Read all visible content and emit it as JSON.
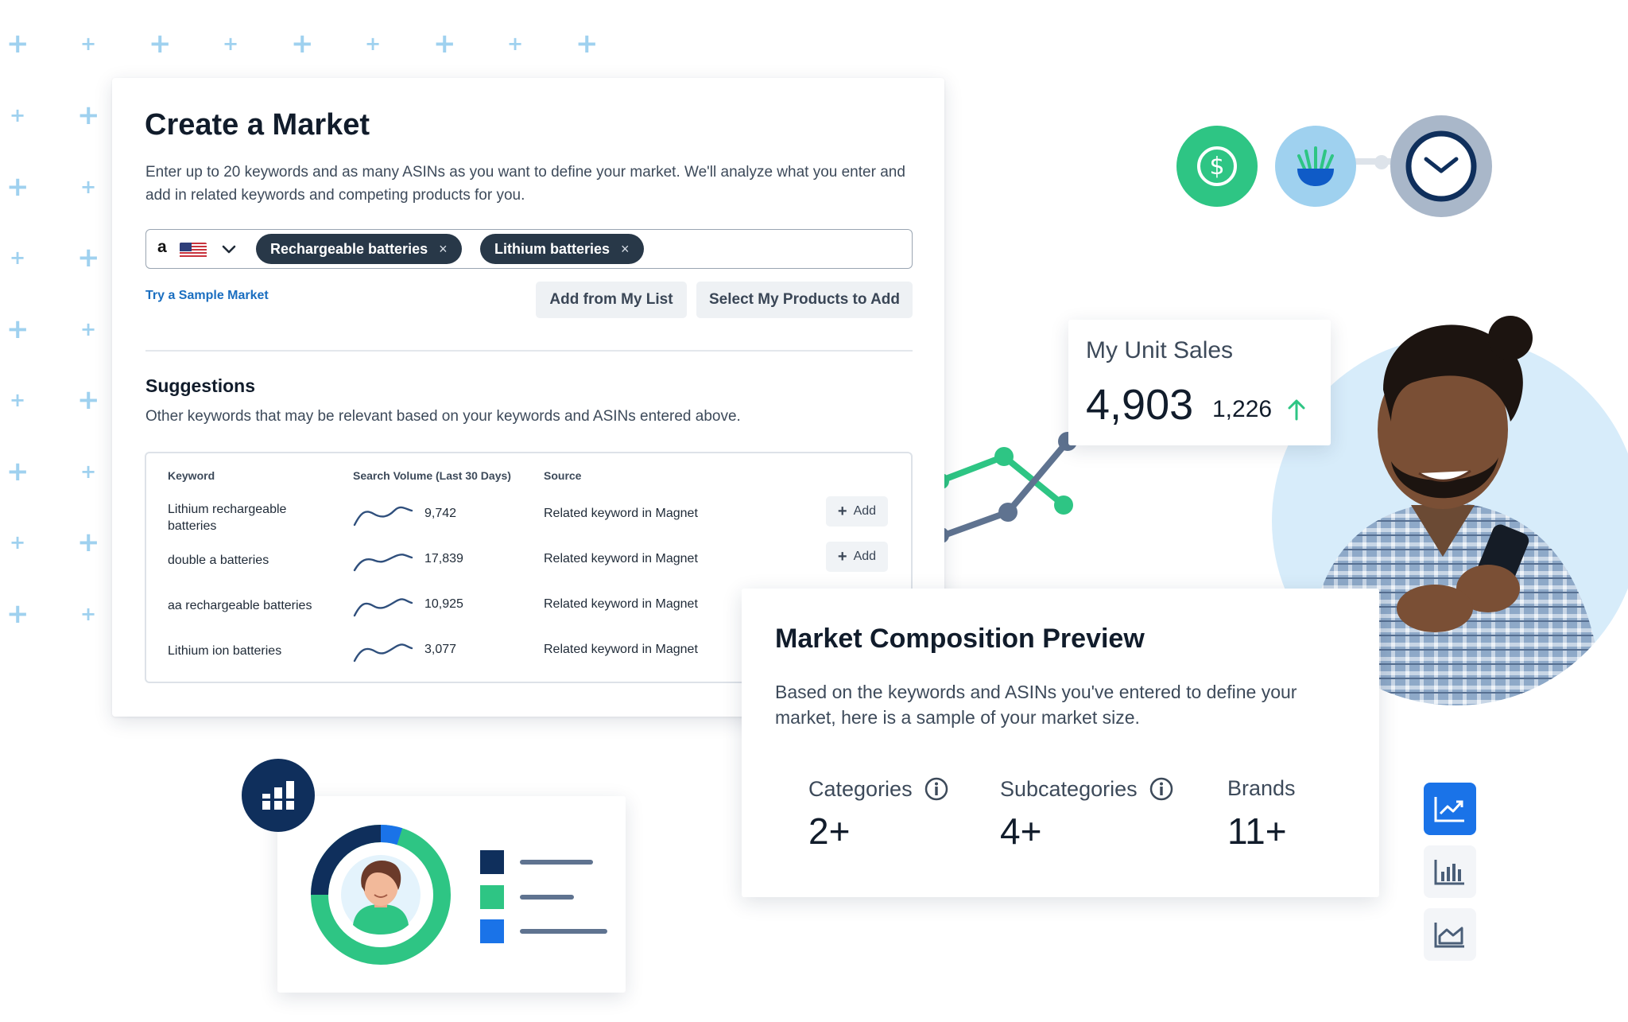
{
  "create_market": {
    "title": "Create a Market",
    "description": "Enter up to 20 keywords and as many ASINs as you want to define your market. We'll analyze what you enter and add in related keywords and competing products for you.",
    "marketplace_icon": "amazon-logo",
    "marketplace_letter": "a",
    "chips": [
      {
        "label": "Rechargeable batteries",
        "remove": "×"
      },
      {
        "label": "Lithium batteries",
        "remove": "×"
      }
    ],
    "sample_link": "Try a Sample Market",
    "add_from_list": "Add from My List",
    "select_products": "Select My Products to Add",
    "suggestions_title": "Suggestions",
    "suggestions_desc": "Other keywords that may be relevant based on your keywords and ASINs entered above.",
    "columns": [
      "Keyword",
      "Search Volume (Last 30 Days)",
      "Source"
    ],
    "rows": [
      {
        "keyword": "Lithium rechargeable batteries",
        "volume": "9,742",
        "source": "Related keyword in Magnet",
        "action": "Add"
      },
      {
        "keyword": "double a batteries",
        "volume": "17,839",
        "source": "Related keyword in Magnet",
        "action": "Add"
      },
      {
        "keyword": "aa rechargeable batteries",
        "volume": "10,925",
        "source": "Related keyword in Magnet",
        "action": ""
      },
      {
        "keyword": "Lithium ion batteries",
        "volume": "3,077",
        "source": "Related keyword in Magnet",
        "action": ""
      }
    ]
  },
  "unit_sales": {
    "label": "My Unit Sales",
    "value": "4,903",
    "delta": "1,226",
    "trend": "up"
  },
  "market_composition": {
    "title": "Market Composition Preview",
    "description": "Based on the keywords and ASINs you've entered to define your market, here is a sample of your market size.",
    "stats": [
      {
        "label": "Categories",
        "value": "2+",
        "info": true
      },
      {
        "label": "Subcategories",
        "value": "4+",
        "info": true
      },
      {
        "label": "Brands",
        "value": "11+",
        "info": false
      }
    ]
  },
  "top_icons": [
    "dollar-icon",
    "plant-icon",
    "clock-icon"
  ],
  "chart_type_buttons": [
    "line-chart-icon",
    "bar-chart-icon",
    "area-chart-icon"
  ],
  "donut": {
    "segments_percent": [
      70,
      25,
      5
    ]
  },
  "colors": {
    "green": "#2ec584",
    "light_blue": "#9fd1ef",
    "navy": "#0f2f5c",
    "blue": "#1a73e8",
    "slate": "#5f7390",
    "chip_bg": "#283848"
  }
}
